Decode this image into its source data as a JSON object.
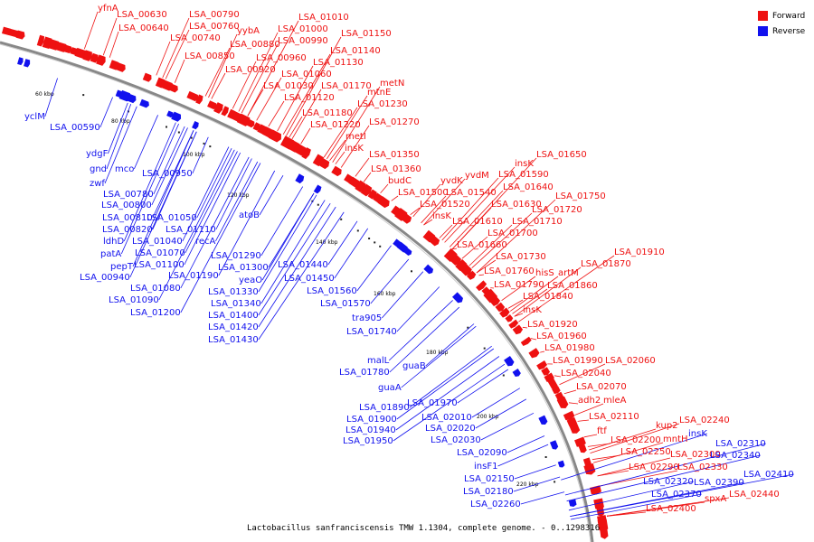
{
  "caption": "Lactobacillus sanfranciscensis TMW 1.1304, complete genome. - 0..1298316",
  "legend": {
    "forward": {
      "label": "Forward",
      "color": "#ee1111"
    },
    "reverse": {
      "label": "Reverse",
      "color": "#1111ee"
    }
  },
  "backbone": {
    "color": "#888888"
  },
  "ticks": [
    "60 kbp",
    "80 kbp",
    "100 kbp",
    "120 kbp",
    "140 kbp",
    "160 kbp",
    "180 kbp",
    "200 kbp",
    "220 kbp"
  ],
  "forward_labels": [
    "yfnA",
    "LSA_00630",
    "LSA_00640",
    "LSA_00740",
    "LSA_00760",
    "LSA_00790",
    "yybA",
    "LSA_00880",
    "LSA_00850",
    "LSA_00920",
    "LSA_00960",
    "LSA_00990",
    "LSA_01000",
    "LSA_01010",
    "LSA_01150",
    "LSA_01140",
    "LSA_01130",
    "LSA_01060",
    "LSA_01030",
    "LSA_01170",
    "LSA_01120",
    "metN",
    "mtnE",
    "LSA_01230",
    "LSA_01180",
    "LSA_01220",
    "LSA_01270",
    "metI",
    "insK",
    "LSA_01350",
    "LSA_01360",
    "budC",
    "LSA_01500",
    "yvdK",
    "yvdM",
    "LSA_01590",
    "insK",
    "LSA_01650",
    "LSA_01540",
    "LSA_01520",
    "LSA_01640",
    "LSA_01630",
    "insK",
    "LSA_01610",
    "LSA_01750",
    "LSA_01720",
    "LSA_01710",
    "LSA_01700",
    "LSA_01660",
    "LSA_01730",
    "LSA_01910",
    "LSA_01760",
    "hisS",
    "artM",
    "LSA_01870",
    "LSA_01790",
    "LSA_01860",
    "LSA_01840",
    "insK",
    "LSA_01920",
    "LSA_01960",
    "LSA_01980",
    "LSA_01990",
    "LSA_02060",
    "LSA_02040",
    "LSA_02070",
    "adh2",
    "mleA",
    "LSA_02110",
    "ftf",
    "kup2",
    "LSA_02240",
    "LSA_02200",
    "mntH",
    "LSA_02250",
    "LSA_02300",
    "LSA_02290",
    "LSA_02330",
    "LSA_02440",
    "spxA",
    "LSA_02400"
  ],
  "reverse_labels": [
    "yclM",
    "LSA_00590",
    "ydgF",
    "gnd",
    "mco",
    "zwf",
    "LSA_00950",
    "LSA_00780",
    "LSA_00800",
    "LSA_00810",
    "LSA_01050",
    "LSA_00820",
    "LSA_01110",
    "ldhD",
    "LSA_01040",
    "recA",
    "patA",
    "LSA_01070",
    "atoB",
    "pepT",
    "LSA_01100",
    "LSA_00940",
    "LSA_01190",
    "LSA_01080",
    "LSA_01090",
    "LSA_01200",
    "LSA_01290",
    "LSA_01300",
    "LSA_01440",
    "yeaO",
    "LSA_01450",
    "LSA_01330",
    "LSA_01560",
    "LSA_01340",
    "LSA_01570",
    "LSA_01400",
    "LSA_01420",
    "LSA_01430",
    "tra905",
    "LSA_01740",
    "malL",
    "guaB",
    "LSA_01780",
    "guaA",
    "LSA_01970",
    "LSA_01890",
    "LSA_02010",
    "LSA_01900",
    "LSA_02020",
    "LSA_01940",
    "LSA_01950",
    "LSA_02030",
    "LSA_02090",
    "insF1",
    "LSA_02150",
    "LSA_02180",
    "LSA_02260",
    "LSA_02310",
    "insK",
    "LSA_02340",
    "LSA_02320",
    "LSA_02390",
    "LSA_02410",
    "LSA_02370"
  ]
}
